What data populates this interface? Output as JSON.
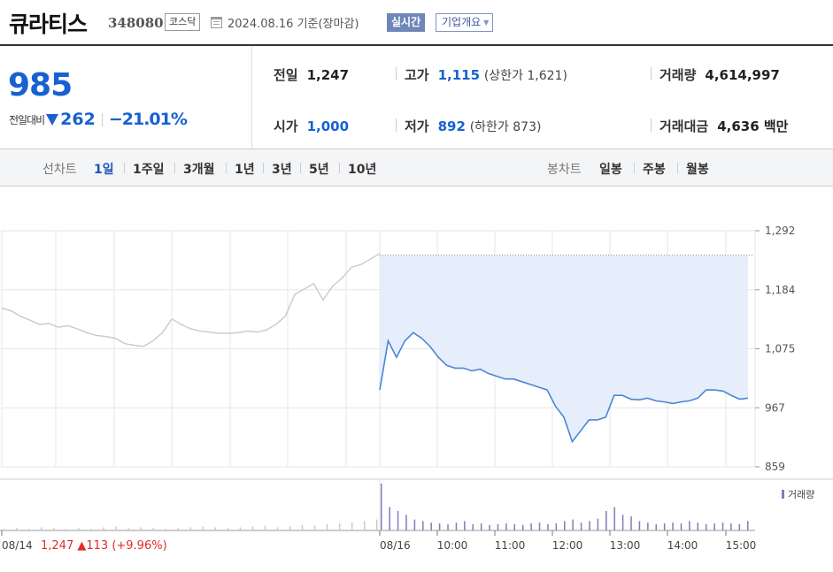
{
  "header": {
    "stock_name": "큐라티스",
    "stock_code": "348080",
    "market": "코스닥",
    "base_date": "2024.08.16 기준(장마감)",
    "realtime_label": "실시간",
    "company_info_label": "기업개요"
  },
  "quote": {
    "current_price": "985",
    "change_label": "전일대비",
    "change_amount": "262",
    "change_percent": "−21.01%",
    "prev_close_label": "전일",
    "prev_close": "1,247",
    "open_label": "시가",
    "open": "1,000",
    "high_label": "고가",
    "high": "1,115",
    "upper_limit_text": "(상한가 1,621)",
    "low_label": "저가",
    "low": "892",
    "lower_limit_text": "(하한가 873)",
    "volume_label": "거래량",
    "volume": "4,614,997",
    "trade_value_label": "거래대금",
    "trade_value": "4,636 백만"
  },
  "period_tabs": {
    "line_label": "선차트",
    "line_items": [
      "1일",
      "1주일",
      "3개월",
      "1년",
      "3년",
      "5년",
      "10년"
    ],
    "active": "1일",
    "candle_label": "봉차트",
    "candle_items": [
      "일봉",
      "주봉",
      "월봉"
    ]
  },
  "colors": {
    "price_down": "#1861d1",
    "price_up": "#e22a2a",
    "today_line": "#4a86d6",
    "today_fill": "#e6eefb",
    "prev_line": "#c9c9c9",
    "volume_today": "#8a78b8",
    "volume_prev": "#c9c9c9"
  },
  "chart_data": {
    "type": "line",
    "y_ticks": [
      "1,292",
      "1,184",
      "1,075",
      "967",
      "859"
    ],
    "ylim": [
      859,
      1292
    ],
    "prev_close_ref": 1247,
    "x_ticks": [
      "08/14",
      "08/16",
      "10:00",
      "11:00",
      "12:00",
      "13:00",
      "14:00",
      "15:00"
    ],
    "prev_day_summary": {
      "date": "08/14",
      "close": "1,247",
      "change": "▲113",
      "percent": "(+9.96%)"
    },
    "volume_legend": "거래량",
    "series": [
      {
        "period": "08/14",
        "values": [
          1150,
          1145,
          1135,
          1128,
          1120,
          1122,
          1115,
          1118,
          1112,
          1105,
          1100,
          1098,
          1095,
          1085,
          1082,
          1080,
          1090,
          1105,
          1130,
          1120,
          1112,
          1108,
          1106,
          1104,
          1104,
          1105,
          1108,
          1106,
          1110,
          1120,
          1135,
          1175,
          1185,
          1195,
          1165,
          1190,
          1205,
          1225,
          1230,
          1240,
          1250
        ]
      },
      {
        "period": "08/16",
        "times": [
          "09:00",
          "09:02",
          "09:05",
          "09:10",
          "09:15",
          "09:20",
          "09:25",
          "09:30",
          "09:40",
          "09:50",
          "10:00",
          "10:10",
          "10:20",
          "10:30",
          "10:40",
          "10:50",
          "11:00",
          "11:10",
          "11:20",
          "11:30",
          "11:40",
          "11:50",
          "12:00",
          "12:05",
          "12:10",
          "12:20",
          "12:30",
          "12:40",
          "12:50",
          "13:00",
          "13:10",
          "13:20",
          "13:30",
          "13:40",
          "13:50",
          "14:00",
          "14:10",
          "14:20",
          "14:30",
          "14:40",
          "14:50",
          "15:00",
          "15:10",
          "15:20",
          "15:30"
        ],
        "values": [
          1000,
          1090,
          1060,
          1090,
          1105,
          1095,
          1080,
          1060,
          1045,
          1040,
          1040,
          1035,
          1038,
          1030,
          1025,
          1020,
          1020,
          1015,
          1010,
          1005,
          1000,
          970,
          950,
          905,
          925,
          945,
          945,
          950,
          990,
          990,
          983,
          982,
          985,
          980,
          978,
          975,
          978,
          980,
          985,
          1000,
          1000,
          998,
          990,
          983,
          985
        ]
      }
    ],
    "volume_prev": [
      2,
      3,
      2,
      4,
      3,
      2,
      3,
      2,
      4,
      5,
      3,
      4,
      3,
      2,
      3,
      4,
      5,
      4,
      3,
      4,
      5,
      6,
      4,
      5,
      7,
      6,
      8,
      9,
      10,
      12,
      14
    ],
    "volume_today": [
      60,
      30,
      25,
      20,
      14,
      12,
      10,
      9,
      8,
      10,
      12,
      8,
      9,
      7,
      8,
      9,
      8,
      7,
      9,
      10,
      8,
      9,
      12,
      14,
      10,
      12,
      15,
      25,
      30,
      20,
      18,
      12,
      10,
      8,
      9,
      10,
      9,
      12,
      10,
      8,
      9,
      10,
      9,
      8,
      12
    ]
  }
}
